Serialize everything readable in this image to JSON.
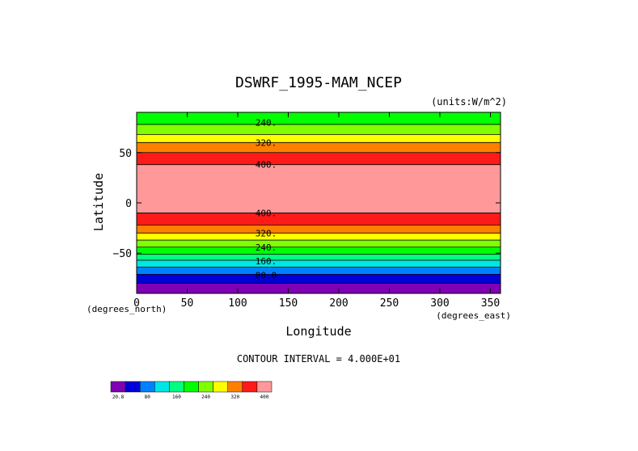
{
  "chart_data": {
    "type": "heatmap",
    "title": "DSWRF_1995-MAM_NCEP",
    "units_note": "(units:W/m^2)",
    "xlabel": "Longitude",
    "ylabel": "Latitude",
    "x_unit_note": "(degrees_east)",
    "y_unit_note": "(degrees_north)",
    "xlim": [
      0,
      360
    ],
    "ylim": [
      -90,
      90
    ],
    "x_ticks": [
      0,
      50,
      100,
      150,
      200,
      250,
      300,
      350
    ],
    "x_tick_labels": [
      "0",
      "50",
      "100",
      "150",
      "200",
      "250",
      "300",
      "350"
    ],
    "y_ticks": [
      50,
      0,
      -50
    ],
    "y_tick_labels": [
      "50",
      "0",
      "−50"
    ],
    "contour_interval_text": "CONTOUR INTERVAL = 4.000E+01",
    "zonal_bands": [
      {
        "lat_min": 78,
        "lat_max": 90,
        "value_range": [
          240,
          280
        ],
        "color": "#00ff00"
      },
      {
        "lat_min": 68,
        "lat_max": 78,
        "value_range": [
          280,
          320
        ],
        "color": "#80ff00"
      },
      {
        "lat_min": 60,
        "lat_max": 68,
        "value_range": [
          320,
          360
        ],
        "color": "#ffff00"
      },
      {
        "lat_min": 50,
        "lat_max": 60,
        "value_range": [
          360,
          400
        ],
        "color": "#ff8000"
      },
      {
        "lat_min": 38,
        "lat_max": 50,
        "value_range": [
          400,
          440
        ],
        "color": "#ff1a1a"
      },
      {
        "lat_min": -10,
        "lat_max": 38,
        "value_range": [
          440,
          480
        ],
        "color": "#ff9999"
      },
      {
        "lat_min": -22,
        "lat_max": -10,
        "value_range": [
          400,
          440
        ],
        "color": "#ff1a1a"
      },
      {
        "lat_min": -30,
        "lat_max": -22,
        "value_range": [
          360,
          400
        ],
        "color": "#ff8000"
      },
      {
        "lat_min": -37,
        "lat_max": -30,
        "value_range": [
          320,
          360
        ],
        "color": "#ffff00"
      },
      {
        "lat_min": -44,
        "lat_max": -37,
        "value_range": [
          280,
          320
        ],
        "color": "#80ff00"
      },
      {
        "lat_min": -51,
        "lat_max": -44,
        "value_range": [
          240,
          280
        ],
        "color": "#00ff00"
      },
      {
        "lat_min": -57,
        "lat_max": -51,
        "value_range": [
          200,
          240
        ],
        "color": "#00ff80"
      },
      {
        "lat_min": -64,
        "lat_max": -57,
        "value_range": [
          160,
          200
        ],
        "color": "#00e6e6"
      },
      {
        "lat_min": -71,
        "lat_max": -64,
        "value_range": [
          120,
          160
        ],
        "color": "#0080ff"
      },
      {
        "lat_min": -80,
        "lat_max": -71,
        "value_range": [
          80,
          120
        ],
        "color": "#0000d9"
      },
      {
        "lat_min": -90,
        "lat_max": -80,
        "value_range": [
          20.8,
          80
        ],
        "color": "#8000b3"
      }
    ],
    "contour_labels": [
      {
        "text": "240.",
        "lon": 128,
        "lat": 80
      },
      {
        "text": "320.",
        "lon": 128,
        "lat": 60
      },
      {
        "text": "400.",
        "lon": 128,
        "lat": 38
      },
      {
        "text": "400.",
        "lon": 128,
        "lat": -10
      },
      {
        "text": "320.",
        "lon": 128,
        "lat": -30
      },
      {
        "text": "240.",
        "lon": 128,
        "lat": -44
      },
      {
        "text": "160.",
        "lon": 128,
        "lat": -58
      },
      {
        "text": "80.0",
        "lon": 128,
        "lat": -72
      }
    ],
    "colorbar": {
      "colors": [
        "#8000b3",
        "#0000d9",
        "#0080ff",
        "#00e6e6",
        "#00ff80",
        "#00ff00",
        "#80ff00",
        "#ffff00",
        "#ff8000",
        "#ff1a1a",
        "#ff9999"
      ],
      "labels": [
        {
          "index": 0,
          "text": "20.8"
        },
        {
          "index": 2,
          "text": "80"
        },
        {
          "index": 4,
          "text": "160"
        },
        {
          "index": 6,
          "text": "240"
        },
        {
          "index": 8,
          "text": "320"
        },
        {
          "index": 10,
          "text": "400"
        }
      ]
    }
  }
}
